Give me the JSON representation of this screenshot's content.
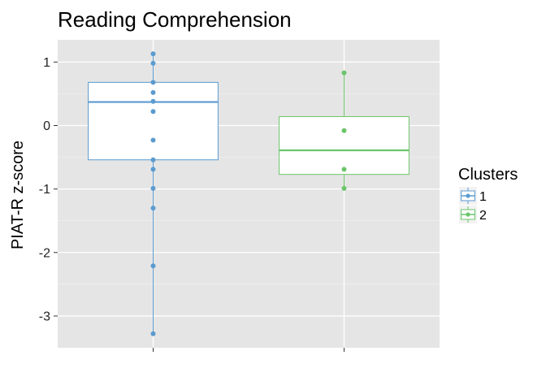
{
  "chart_data": {
    "type": "box",
    "title": "Reading Comprehension",
    "xlabel": "",
    "ylabel": "PIAT-R z-score",
    "ylim": [
      -3.5,
      1.35
    ],
    "y_ticks": [
      1,
      0,
      -1,
      -2,
      -3
    ],
    "y_tick_labels": [
      "1",
      "0",
      "-1",
      "-2",
      "-3"
    ],
    "grid": true,
    "legend": {
      "title": "Clusters",
      "position": "right"
    },
    "series": [
      {
        "name": "1",
        "color": "#5b9bd0",
        "box": {
          "q1": -0.54,
          "median": 0.37,
          "q3": 0.68,
          "whisker_low": -3.28,
          "whisker_high": 1.13
        },
        "points": [
          1.13,
          0.98,
          0.68,
          0.52,
          0.38,
          0.22,
          -0.23,
          -0.54,
          -0.69,
          -0.99,
          -1.3,
          -2.21,
          -3.28
        ]
      },
      {
        "name": "2",
        "color": "#6cc56a",
        "box": {
          "q1": -0.77,
          "median": -0.39,
          "q3": 0.14,
          "whisker_low": -0.99,
          "whisker_high": 0.83
        },
        "points": [
          0.83,
          -0.08,
          -0.69,
          -0.99
        ]
      }
    ]
  }
}
